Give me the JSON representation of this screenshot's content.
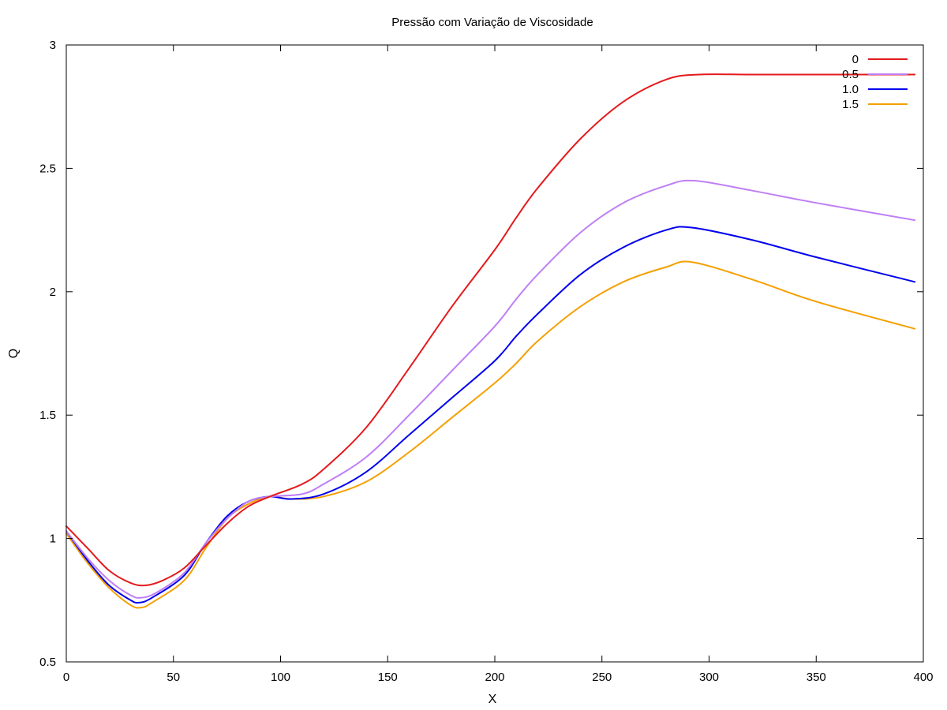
{
  "chart_data": {
    "type": "line",
    "title": "Pressão com Variação de Viscosidade",
    "xlabel": "X",
    "ylabel": "Q",
    "xlim": [
      0,
      400
    ],
    "ylim": [
      0.5,
      3
    ],
    "xticks": [
      0,
      50,
      100,
      150,
      200,
      250,
      300,
      350,
      400
    ],
    "yticks": [
      0.5,
      1,
      1.5,
      2,
      2.5,
      3
    ],
    "xtick_labels": [
      "0",
      "50",
      "100",
      "150",
      "200",
      "250",
      "300",
      "350",
      "400"
    ],
    "ytick_labels": [
      "0.5",
      "1",
      "1.5",
      "2",
      "2.5",
      "3"
    ],
    "grid": false,
    "legend_position": "top-right",
    "series": [
      {
        "name": "0",
        "color": "#e41a1c",
        "x": [
          0,
          10,
          20,
          30,
          37,
          45,
          55,
          65,
          75,
          85,
          95,
          110,
          120,
          140,
          160,
          180,
          200,
          210,
          220,
          240,
          260,
          280,
          295,
          320,
          350,
          396
        ],
        "y": [
          1.05,
          0.96,
          0.87,
          0.82,
          0.81,
          0.83,
          0.88,
          0.97,
          1.06,
          1.13,
          1.17,
          1.22,
          1.28,
          1.45,
          1.69,
          1.94,
          2.17,
          2.3,
          2.42,
          2.62,
          2.77,
          2.86,
          2.88,
          2.88,
          2.88,
          2.88
        ]
      },
      {
        "name": "0.5",
        "color": "#bf7ff5",
        "x": [
          0,
          10,
          20,
          30,
          35,
          42,
          55,
          65,
          75,
          85,
          95,
          110,
          120,
          140,
          160,
          180,
          200,
          210,
          220,
          240,
          260,
          280,
          293,
          320,
          350,
          396
        ],
        "y": [
          1.03,
          0.92,
          0.83,
          0.77,
          0.76,
          0.78,
          0.86,
          0.98,
          1.08,
          1.15,
          1.17,
          1.18,
          1.22,
          1.33,
          1.5,
          1.68,
          1.86,
          1.97,
          2.07,
          2.24,
          2.36,
          2.43,
          2.45,
          2.41,
          2.36,
          2.29
        ]
      },
      {
        "name": "1.0",
        "color": "#0000ee",
        "x": [
          0,
          10,
          20,
          30,
          34,
          40,
          55,
          65,
          75,
          85,
          95,
          105,
          120,
          140,
          160,
          180,
          200,
          210,
          220,
          240,
          260,
          280,
          292,
          320,
          350,
          396
        ],
        "y": [
          1.03,
          0.91,
          0.81,
          0.75,
          0.74,
          0.76,
          0.85,
          0.98,
          1.09,
          1.15,
          1.17,
          1.16,
          1.18,
          1.27,
          1.42,
          1.57,
          1.72,
          1.82,
          1.91,
          2.07,
          2.18,
          2.25,
          2.26,
          2.21,
          2.14,
          2.04
        ]
      },
      {
        "name": "1.5",
        "color": "#f5a000",
        "x": [
          0,
          10,
          20,
          30,
          35,
          40,
          55,
          65,
          75,
          85,
          95,
          105,
          120,
          140,
          160,
          180,
          200,
          210,
          220,
          240,
          260,
          280,
          292,
          320,
          350,
          396
        ],
        "y": [
          1.02,
          0.9,
          0.8,
          0.73,
          0.72,
          0.74,
          0.83,
          0.96,
          1.08,
          1.14,
          1.17,
          1.16,
          1.17,
          1.23,
          1.35,
          1.49,
          1.63,
          1.71,
          1.8,
          1.94,
          2.04,
          2.1,
          2.12,
          2.05,
          1.96,
          1.85
        ]
      }
    ]
  }
}
